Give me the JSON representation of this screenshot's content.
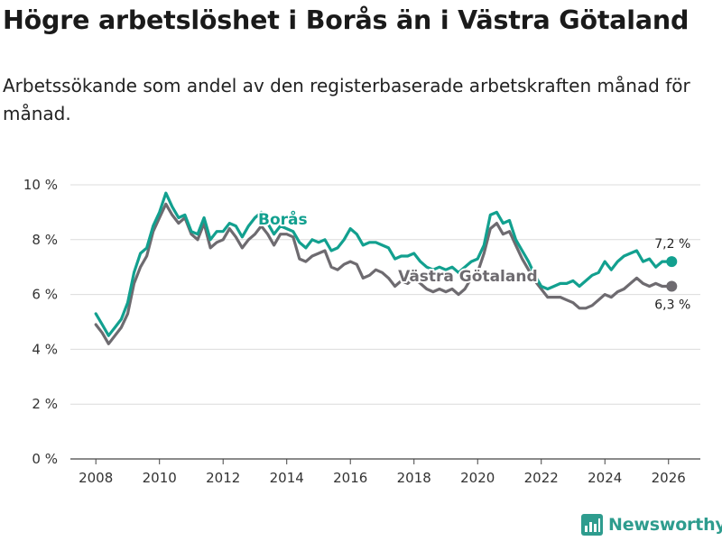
{
  "header": {
    "title": "Högre arbetslöshet i Borås än i Västra Götaland",
    "subtitle": "Arbetssökande som andel av den registerbaserade arbetskraften månad för månad."
  },
  "brand": {
    "name": "Newsworthy",
    "icon": "newsworthy-logo-icon",
    "color": "#2e9c8e"
  },
  "chart_data": {
    "type": "line",
    "title": "Högre arbetslöshet i Borås än i Västra Götaland",
    "xlabel": "",
    "ylabel": "",
    "ylim": [
      0,
      10
    ],
    "xlim": [
      2007.2,
      2027.0
    ],
    "x_ticks": [
      2008,
      2010,
      2012,
      2014,
      2016,
      2018,
      2020,
      2022,
      2024,
      2026
    ],
    "x_tick_labels": [
      "2008",
      "2010",
      "2012",
      "2014",
      "2016",
      "2018",
      "2020",
      "2022",
      "2024",
      "2026"
    ],
    "y_ticks": [
      0,
      2,
      4,
      6,
      8,
      10
    ],
    "y_tick_labels": [
      "0 %",
      "2 %",
      "4 %",
      "6 %",
      "8 %",
      "10 %"
    ],
    "grid": true,
    "series": [
      {
        "name": "Västra Götaland",
        "color": "#6e6b70",
        "label": "Västra Götaland",
        "end_label": "6,3 %",
        "points": [
          [
            2008.0,
            4.9
          ],
          [
            2008.2,
            4.6
          ],
          [
            2008.4,
            4.2
          ],
          [
            2008.6,
            4.5
          ],
          [
            2008.8,
            4.8
          ],
          [
            2009.0,
            5.3
          ],
          [
            2009.2,
            6.4
          ],
          [
            2009.4,
            7.0
          ],
          [
            2009.6,
            7.4
          ],
          [
            2009.8,
            8.3
          ],
          [
            2010.0,
            8.8
          ],
          [
            2010.2,
            9.3
          ],
          [
            2010.4,
            8.9
          ],
          [
            2010.6,
            8.6
          ],
          [
            2010.8,
            8.8
          ],
          [
            2011.0,
            8.2
          ],
          [
            2011.2,
            8.0
          ],
          [
            2011.4,
            8.6
          ],
          [
            2011.6,
            7.7
          ],
          [
            2011.8,
            7.9
          ],
          [
            2012.0,
            8.0
          ],
          [
            2012.2,
            8.4
          ],
          [
            2012.4,
            8.1
          ],
          [
            2012.6,
            7.7
          ],
          [
            2012.8,
            8.0
          ],
          [
            2013.0,
            8.2
          ],
          [
            2013.2,
            8.5
          ],
          [
            2013.4,
            8.2
          ],
          [
            2013.6,
            7.8
          ],
          [
            2013.8,
            8.2
          ],
          [
            2014.0,
            8.2
          ],
          [
            2014.2,
            8.1
          ],
          [
            2014.4,
            7.3
          ],
          [
            2014.6,
            7.2
          ],
          [
            2014.8,
            7.4
          ],
          [
            2015.0,
            7.5
          ],
          [
            2015.2,
            7.6
          ],
          [
            2015.4,
            7.0
          ],
          [
            2015.6,
            6.9
          ],
          [
            2015.8,
            7.1
          ],
          [
            2016.0,
            7.2
          ],
          [
            2016.2,
            7.1
          ],
          [
            2016.4,
            6.6
          ],
          [
            2016.6,
            6.7
          ],
          [
            2016.8,
            6.9
          ],
          [
            2017.0,
            6.8
          ],
          [
            2017.2,
            6.6
          ],
          [
            2017.4,
            6.3
          ],
          [
            2017.6,
            6.5
          ],
          [
            2017.8,
            6.4
          ],
          [
            2018.0,
            6.6
          ],
          [
            2018.2,
            6.4
          ],
          [
            2018.4,
            6.2
          ],
          [
            2018.6,
            6.1
          ],
          [
            2018.8,
            6.2
          ],
          [
            2019.0,
            6.1
          ],
          [
            2019.2,
            6.2
          ],
          [
            2019.4,
            6.0
          ],
          [
            2019.6,
            6.2
          ],
          [
            2019.8,
            6.6
          ],
          [
            2020.0,
            6.8
          ],
          [
            2020.2,
            7.5
          ],
          [
            2020.4,
            8.4
          ],
          [
            2020.6,
            8.6
          ],
          [
            2020.8,
            8.2
          ],
          [
            2021.0,
            8.3
          ],
          [
            2021.2,
            7.8
          ],
          [
            2021.4,
            7.3
          ],
          [
            2021.6,
            6.9
          ],
          [
            2021.8,
            6.5
          ],
          [
            2022.0,
            6.2
          ],
          [
            2022.2,
            5.9
          ],
          [
            2022.4,
            5.9
          ],
          [
            2022.6,
            5.9
          ],
          [
            2022.8,
            5.8
          ],
          [
            2023.0,
            5.7
          ],
          [
            2023.2,
            5.5
          ],
          [
            2023.4,
            5.5
          ],
          [
            2023.6,
            5.6
          ],
          [
            2023.8,
            5.8
          ],
          [
            2024.0,
            6.0
          ],
          [
            2024.2,
            5.9
          ],
          [
            2024.4,
            6.1
          ],
          [
            2024.6,
            6.2
          ],
          [
            2024.8,
            6.4
          ],
          [
            2025.0,
            6.6
          ],
          [
            2025.2,
            6.4
          ],
          [
            2025.4,
            6.3
          ],
          [
            2025.6,
            6.4
          ],
          [
            2025.8,
            6.3
          ],
          [
            2026.1,
            6.3
          ]
        ]
      },
      {
        "name": "Borås",
        "color": "#12a08f",
        "label": "Borås",
        "end_label": "7,2 %",
        "points": [
          [
            2008.0,
            5.3
          ],
          [
            2008.2,
            4.9
          ],
          [
            2008.4,
            4.5
          ],
          [
            2008.6,
            4.8
          ],
          [
            2008.8,
            5.1
          ],
          [
            2009.0,
            5.7
          ],
          [
            2009.2,
            6.8
          ],
          [
            2009.4,
            7.5
          ],
          [
            2009.6,
            7.7
          ],
          [
            2009.8,
            8.5
          ],
          [
            2010.0,
            9.0
          ],
          [
            2010.2,
            9.7
          ],
          [
            2010.4,
            9.2
          ],
          [
            2010.6,
            8.8
          ],
          [
            2010.8,
            8.9
          ],
          [
            2011.0,
            8.3
          ],
          [
            2011.2,
            8.2
          ],
          [
            2011.4,
            8.8
          ],
          [
            2011.6,
            8.0
          ],
          [
            2011.8,
            8.3
          ],
          [
            2012.0,
            8.3
          ],
          [
            2012.2,
            8.6
          ],
          [
            2012.4,
            8.5
          ],
          [
            2012.6,
            8.1
          ],
          [
            2012.8,
            8.5
          ],
          [
            2013.0,
            8.8
          ],
          [
            2013.2,
            9.0
          ],
          [
            2013.4,
            8.6
          ],
          [
            2013.6,
            8.2
          ],
          [
            2013.8,
            8.5
          ],
          [
            2014.0,
            8.4
          ],
          [
            2014.2,
            8.3
          ],
          [
            2014.4,
            7.9
          ],
          [
            2014.6,
            7.7
          ],
          [
            2014.8,
            8.0
          ],
          [
            2015.0,
            7.9
          ],
          [
            2015.2,
            8.0
          ],
          [
            2015.4,
            7.6
          ],
          [
            2015.6,
            7.7
          ],
          [
            2015.8,
            8.0
          ],
          [
            2016.0,
            8.4
          ],
          [
            2016.2,
            8.2
          ],
          [
            2016.4,
            7.8
          ],
          [
            2016.6,
            7.9
          ],
          [
            2016.8,
            7.9
          ],
          [
            2017.0,
            7.8
          ],
          [
            2017.2,
            7.7
          ],
          [
            2017.4,
            7.3
          ],
          [
            2017.6,
            7.4
          ],
          [
            2017.8,
            7.4
          ],
          [
            2018.0,
            7.5
          ],
          [
            2018.2,
            7.2
          ],
          [
            2018.4,
            7.0
          ],
          [
            2018.6,
            6.9
          ],
          [
            2018.8,
            7.0
          ],
          [
            2019.0,
            6.9
          ],
          [
            2019.2,
            7.0
          ],
          [
            2019.4,
            6.8
          ],
          [
            2019.6,
            7.0
          ],
          [
            2019.8,
            7.2
          ],
          [
            2020.0,
            7.3
          ],
          [
            2020.2,
            7.8
          ],
          [
            2020.4,
            8.9
          ],
          [
            2020.6,
            9.0
          ],
          [
            2020.8,
            8.6
          ],
          [
            2021.0,
            8.7
          ],
          [
            2021.2,
            8.0
          ],
          [
            2021.4,
            7.6
          ],
          [
            2021.6,
            7.2
          ],
          [
            2021.8,
            6.7
          ],
          [
            2022.0,
            6.3
          ],
          [
            2022.2,
            6.2
          ],
          [
            2022.4,
            6.3
          ],
          [
            2022.6,
            6.4
          ],
          [
            2022.8,
            6.4
          ],
          [
            2023.0,
            6.5
          ],
          [
            2023.2,
            6.3
          ],
          [
            2023.4,
            6.5
          ],
          [
            2023.6,
            6.7
          ],
          [
            2023.8,
            6.8
          ],
          [
            2024.0,
            7.2
          ],
          [
            2024.2,
            6.9
          ],
          [
            2024.4,
            7.2
          ],
          [
            2024.6,
            7.4
          ],
          [
            2024.8,
            7.5
          ],
          [
            2025.0,
            7.6
          ],
          [
            2025.2,
            7.2
          ],
          [
            2025.4,
            7.3
          ],
          [
            2025.6,
            7.0
          ],
          [
            2025.8,
            7.2
          ],
          [
            2026.1,
            7.2
          ]
        ]
      }
    ]
  }
}
